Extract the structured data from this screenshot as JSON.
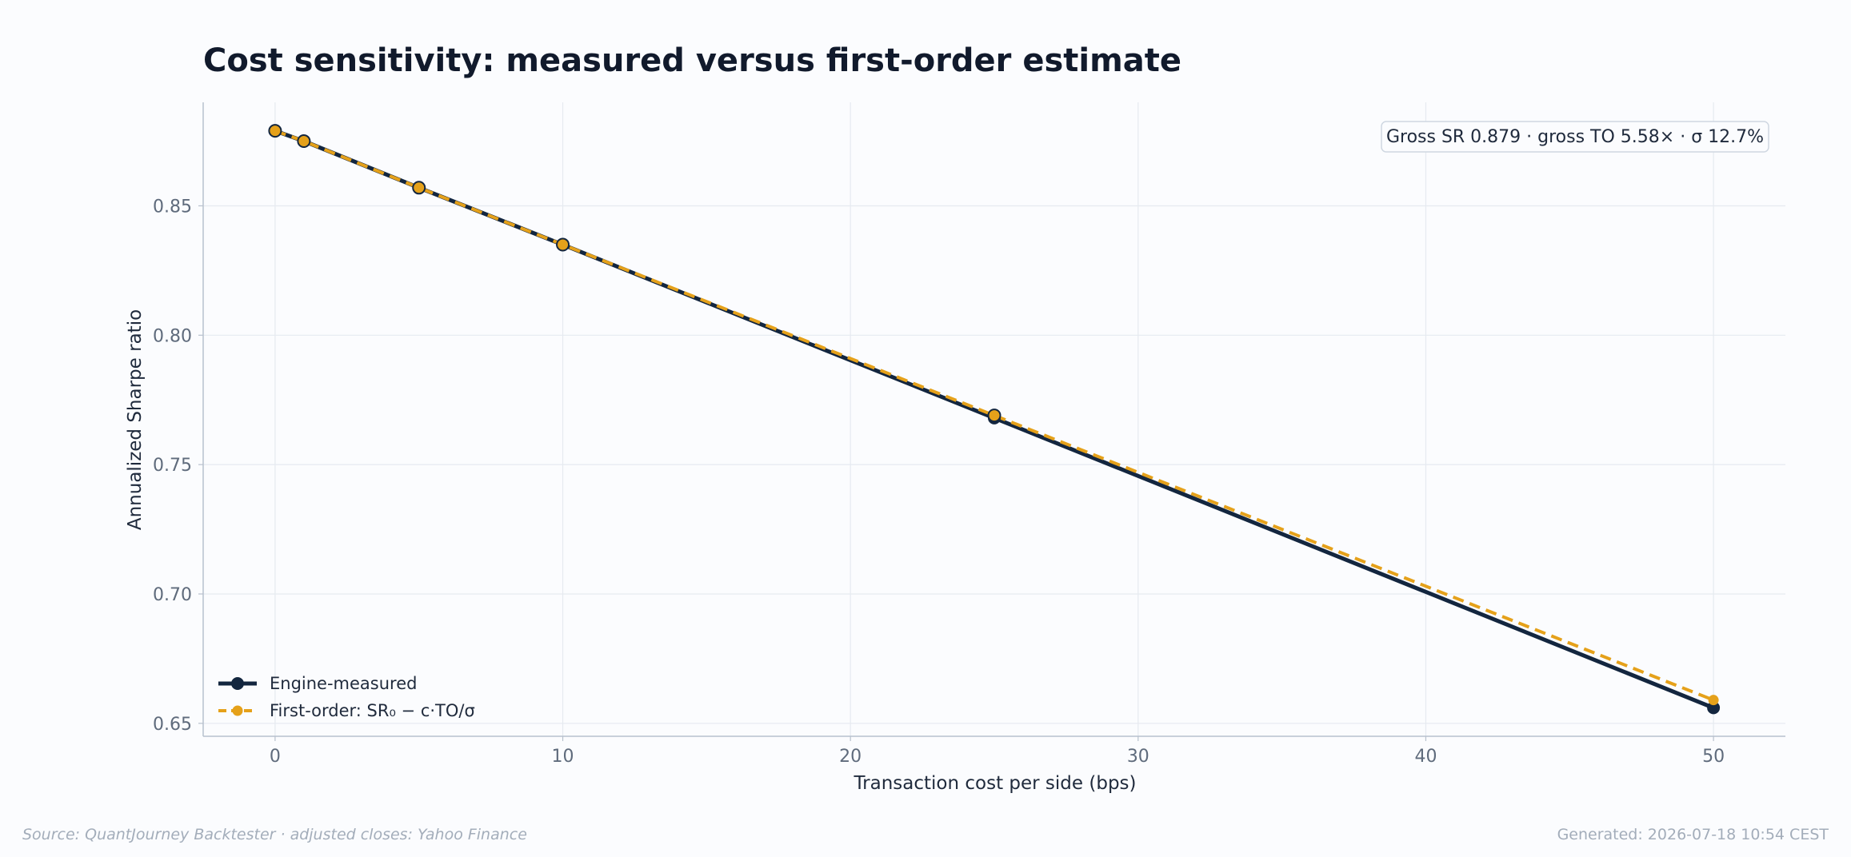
{
  "chart_data": {
    "type": "line",
    "title": "Cost sensitivity: measured versus first-order estimate",
    "xlabel": "Transaction cost per side (bps)",
    "ylabel": "Annualized Sharpe ratio",
    "xlim": [
      -2.5,
      52.5
    ],
    "ylim": [
      0.645,
      0.89
    ],
    "x_ticks": [
      0,
      10,
      20,
      30,
      40,
      50
    ],
    "y_ticks": [
      0.65,
      0.7,
      0.75,
      0.8,
      0.85
    ],
    "grid": true,
    "legend_position": "lower-left",
    "annotation": "Gross SR 0.879 · gross TO 5.58× · σ 12.7%",
    "series": [
      {
        "name": "Engine-measured",
        "color": "#13263f",
        "style": "solid",
        "x": [
          0,
          1,
          5,
          10,
          25,
          50
        ],
        "y": [
          0.879,
          0.875,
          0.857,
          0.835,
          0.768,
          0.656
        ]
      },
      {
        "name": "First-order: SR₀ − c·TO/σ",
        "color": "#e5a11a",
        "style": "dashed",
        "x": [
          0,
          1,
          5,
          10,
          25,
          50
        ],
        "y": [
          0.879,
          0.875,
          0.857,
          0.835,
          0.769,
          0.659
        ]
      }
    ]
  },
  "footer": {
    "source": "Source: QuantJourney Backtester · adjusted closes: Yahoo Finance",
    "generated": "Generated: 2026-07-18 10:54 CEST"
  }
}
